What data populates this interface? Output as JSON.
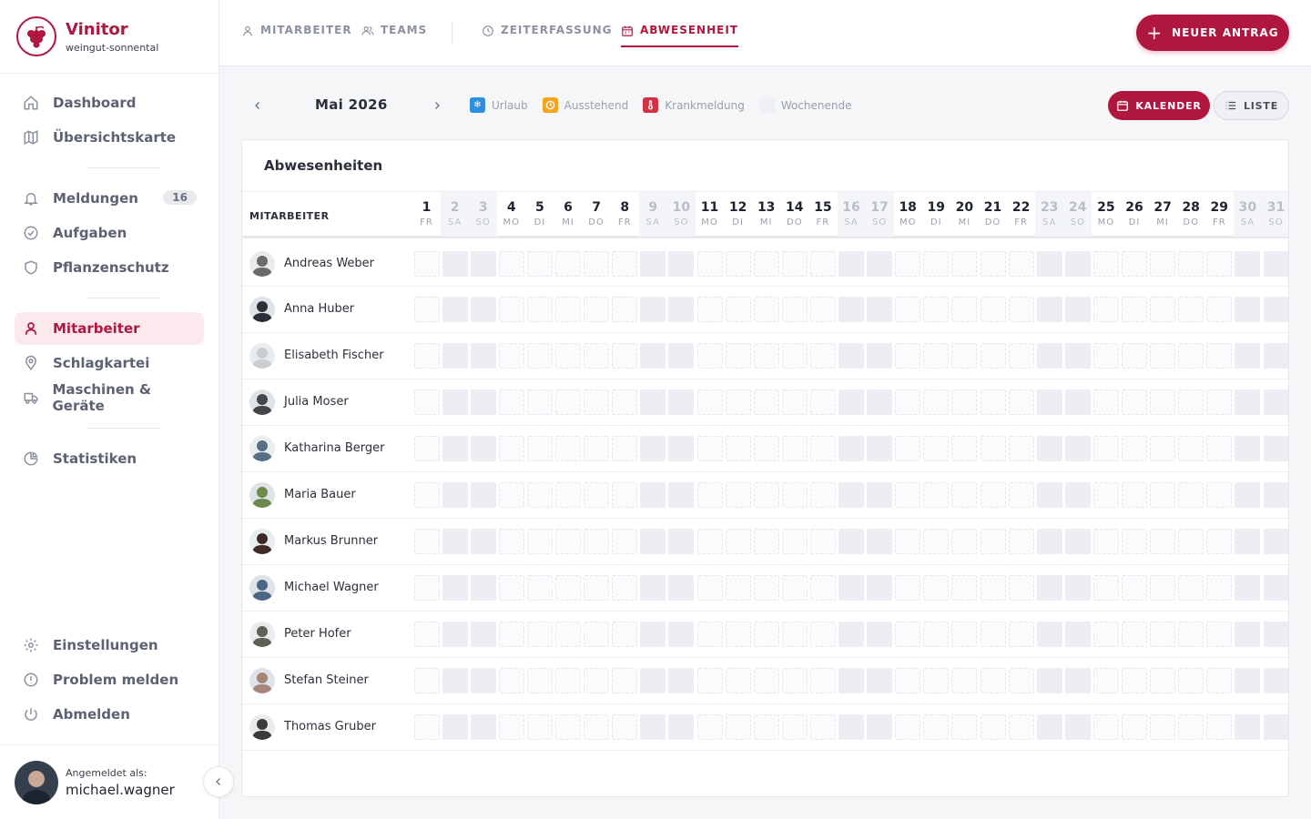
{
  "app": {
    "name": "Vinitor",
    "workspace": "weingut-sonnental"
  },
  "sidebar": {
    "items": [
      {
        "label": "Dashboard",
        "icon": "home-icon"
      },
      {
        "label": "Übersichtskarte",
        "icon": "map-icon"
      },
      {
        "label": "Meldungen",
        "icon": "bell-icon",
        "badge": "16"
      },
      {
        "label": "Aufgaben",
        "icon": "check-circle-icon"
      },
      {
        "label": "Pflanzenschutz",
        "icon": "shield-icon"
      },
      {
        "label": "Mitarbeiter",
        "icon": "user-icon",
        "active": true
      },
      {
        "label": "Schlagkartei",
        "icon": "map-pin-icon"
      },
      {
        "label": "Maschinen & Geräte",
        "icon": "truck-icon"
      },
      {
        "label": "Statistiken",
        "icon": "pie-chart-icon"
      }
    ],
    "bottom_items": [
      {
        "label": "Einstellungen",
        "icon": "gear-icon"
      },
      {
        "label": "Problem melden",
        "icon": "alert-icon"
      },
      {
        "label": "Abmelden",
        "icon": "power-icon"
      }
    ],
    "user": {
      "label": "Angemeldet als:",
      "name": "michael.wagner"
    }
  },
  "topbar": {
    "tabs": [
      {
        "label": "MITARBEITER",
        "icon": "user-icon"
      },
      {
        "label": "TEAMS",
        "icon": "users-icon"
      },
      {
        "label": "ZEITERFASSUNG",
        "icon": "clock-icon"
      },
      {
        "label": "ABWESENHEIT",
        "icon": "calendar-icon",
        "active": true
      }
    ],
    "new_button": "NEUER ANTRAG"
  },
  "toolbar": {
    "month": "Mai 2026",
    "legend": [
      {
        "label": "Urlaub",
        "color": "#2f8ee0"
      },
      {
        "label": "Ausstehend",
        "color": "#f4a51c"
      },
      {
        "label": "Krankmeldung",
        "color": "#d33245"
      },
      {
        "label": "Wochenende",
        "color": "#eceef3"
      }
    ],
    "view_calendar": "KALENDER",
    "view_list": "LISTE"
  },
  "card": {
    "title": "Abwesenheiten",
    "column_employee": "MITARBEITER",
    "days": [
      {
        "d": "1",
        "w": "FR",
        "we": false
      },
      {
        "d": "2",
        "w": "SA",
        "we": true
      },
      {
        "d": "3",
        "w": "SO",
        "we": true
      },
      {
        "d": "4",
        "w": "MO",
        "we": false
      },
      {
        "d": "5",
        "w": "DI",
        "we": false
      },
      {
        "d": "6",
        "w": "MI",
        "we": false
      },
      {
        "d": "7",
        "w": "DO",
        "we": false
      },
      {
        "d": "8",
        "w": "FR",
        "we": false
      },
      {
        "d": "9",
        "w": "SA",
        "we": true
      },
      {
        "d": "10",
        "w": "SO",
        "we": true
      },
      {
        "d": "11",
        "w": "MO",
        "we": false
      },
      {
        "d": "12",
        "w": "DI",
        "we": false
      },
      {
        "d": "13",
        "w": "MI",
        "we": false
      },
      {
        "d": "14",
        "w": "DO",
        "we": false
      },
      {
        "d": "15",
        "w": "FR",
        "we": false
      },
      {
        "d": "16",
        "w": "SA",
        "we": true
      },
      {
        "d": "17",
        "w": "SO",
        "we": true
      },
      {
        "d": "18",
        "w": "MO",
        "we": false
      },
      {
        "d": "19",
        "w": "DI",
        "we": false
      },
      {
        "d": "20",
        "w": "MI",
        "we": false
      },
      {
        "d": "21",
        "w": "DO",
        "we": false
      },
      {
        "d": "22",
        "w": "FR",
        "we": false
      },
      {
        "d": "23",
        "w": "SA",
        "we": true
      },
      {
        "d": "24",
        "w": "SO",
        "we": true
      },
      {
        "d": "25",
        "w": "MO",
        "we": false
      },
      {
        "d": "26",
        "w": "DI",
        "we": false
      },
      {
        "d": "27",
        "w": "MI",
        "we": false
      },
      {
        "d": "28",
        "w": "DO",
        "we": false
      },
      {
        "d": "29",
        "w": "FR",
        "we": false
      },
      {
        "d": "30",
        "w": "SA",
        "we": true
      },
      {
        "d": "31",
        "w": "SO",
        "we": true
      }
    ],
    "employees": [
      {
        "name": "Andreas Weber",
        "avatar": "#6b6b6b"
      },
      {
        "name": "Anna Huber",
        "avatar": "#2a2f36"
      },
      {
        "name": "Elisabeth Fischer",
        "avatar": "#c9cdd3"
      },
      {
        "name": "Julia Moser",
        "avatar": "#44464a"
      },
      {
        "name": "Katharina Berger",
        "avatar": "#5a6f86"
      },
      {
        "name": "Maria Bauer",
        "avatar": "#6c8a4c"
      },
      {
        "name": "Markus Brunner",
        "avatar": "#3d2b28"
      },
      {
        "name": "Michael Wagner",
        "avatar": "#4a6685"
      },
      {
        "name": "Peter Hofer",
        "avatar": "#5f6157"
      },
      {
        "name": "Stefan Steiner",
        "avatar": "#a7867a"
      },
      {
        "name": "Thomas Gruber",
        "avatar": "#3e3a39"
      }
    ]
  }
}
